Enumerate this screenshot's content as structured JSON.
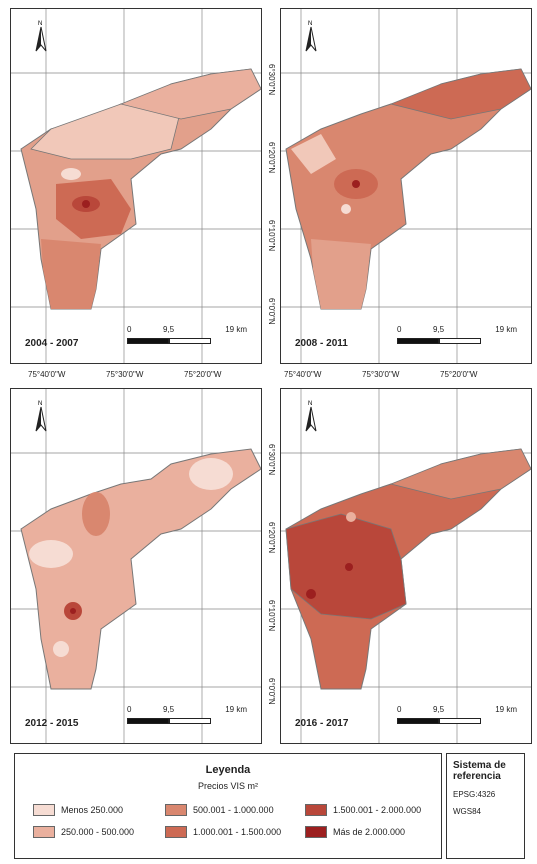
{
  "panels": [
    {
      "period": "2004 - 2007"
    },
    {
      "period": "2008 - 2011"
    },
    {
      "period": "2012 - 2015"
    },
    {
      "period": "2016 - 2017"
    }
  ],
  "north_label": "N",
  "scale": {
    "zero": "0",
    "mid": "9,5",
    "max": "19 km"
  },
  "longitudes": [
    "75°40'0\"W",
    "75°30'0\"W",
    "75°20'0\"W"
  ],
  "latitudes": [
    "6°30'0\"N",
    "6°20'0\"N",
    "6°10'0\"N",
    "6°0'0\"N"
  ],
  "legend": {
    "title": "Leyenda",
    "subtitle": "Precios VIS m²",
    "items": [
      {
        "label": "Menos 250.000",
        "color": "#f6dcd3"
      },
      {
        "label": "250.000 - 500.000",
        "color": "#eab09e"
      },
      {
        "label": "500.001 - 1.000.000",
        "color": "#d9876f"
      },
      {
        "label": "1.000.001 - 1.500.000",
        "color": "#cd6a54"
      },
      {
        "label": "1.500.001 - 2.000.000",
        "color": "#b9473a"
      },
      {
        "label": "Más de 2.000.000",
        "color": "#9c1f1f"
      }
    ]
  },
  "reference": {
    "title": "Sistema de referencia",
    "epsg": "EPSG:4326",
    "datum": "WGS84"
  }
}
